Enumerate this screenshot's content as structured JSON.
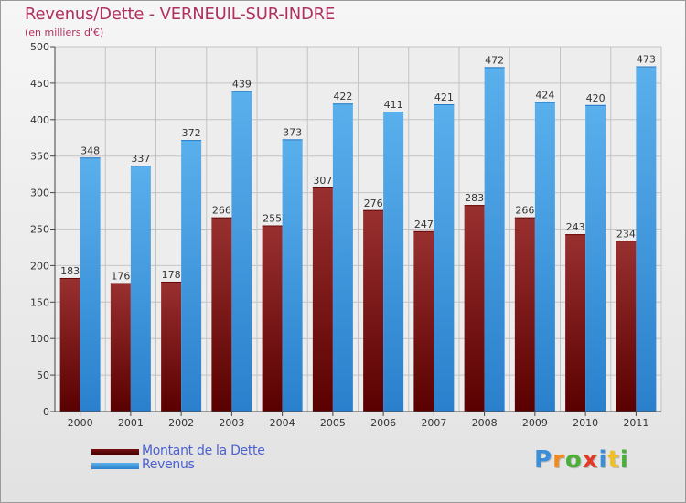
{
  "chart_data": {
    "type": "bar",
    "title": "Revenus/Dette - VERNEUIL-SUR-INDRE",
    "subtitle": "(en milliers d'€)",
    "categories": [
      "2000",
      "2001",
      "2002",
      "2003",
      "2004",
      "2005",
      "2006",
      "2007",
      "2008",
      "2009",
      "2010",
      "2011"
    ],
    "series": [
      {
        "name": "Montant de la Dette",
        "color": "#8b1a1a",
        "values": [
          183,
          176,
          178,
          266,
          255,
          307,
          276,
          247,
          283,
          266,
          243,
          234
        ]
      },
      {
        "name": "Revenus",
        "color": "#3d9be4",
        "values": [
          348,
          337,
          372,
          439,
          373,
          422,
          411,
          421,
          472,
          424,
          420,
          473
        ]
      }
    ],
    "ylim": [
      0,
      500
    ],
    "yticks": [
      0,
      50,
      100,
      150,
      200,
      250,
      300,
      350,
      400,
      450,
      500
    ],
    "grid": true,
    "legend_position": "bottom-left"
  },
  "branding": {
    "logo_letters": [
      {
        "ch": "P",
        "color": "#3a8fd8"
      },
      {
        "ch": "r",
        "color": "#f08a1c"
      },
      {
        "ch": "o",
        "color": "#4caf3a"
      },
      {
        "ch": "x",
        "color": "#e03a2a"
      },
      {
        "ch": "i",
        "color": "#3a8fd8"
      },
      {
        "ch": "t",
        "color": "#f0c020"
      },
      {
        "ch": "i",
        "color": "#4caf3a"
      }
    ]
  }
}
